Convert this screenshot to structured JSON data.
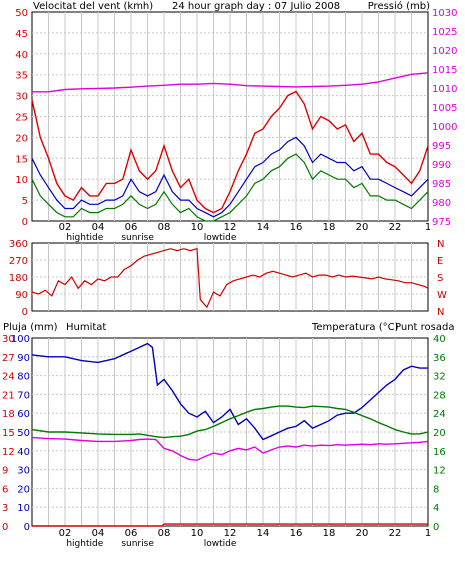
{
  "colors": {
    "wind": "#e00000",
    "wind_avg": "#0000c0",
    "wind_dir": "#d00000",
    "pressure": "#e000e0",
    "humidity": "#0000c0",
    "temperature": "#007a00",
    "dew_point": "#e000e0",
    "rain": "#d00000",
    "grid": "#c8c8c8",
    "frame": "#000000"
  },
  "chart_data": [
    {
      "type": "line",
      "name": "wind-pressure",
      "title": "24 hour graph day : 07 Julio 2008",
      "left_label": "Velocitat del vent (kmh)",
      "right_label": "Pressió (mb)",
      "x_ticks": [
        "02",
        "04",
        "06",
        "08",
        "10",
        "12",
        "14",
        "16",
        "18",
        "20",
        "22",
        "1"
      ],
      "x_markers": [
        "hightide",
        "sunrise",
        "lowtide"
      ],
      "x_range": [
        0,
        24
      ],
      "y_left_range": [
        0,
        50
      ],
      "y_left_ticks": [
        0,
        5,
        10,
        15,
        20,
        25,
        30,
        35,
        40,
        45,
        50
      ],
      "y_right_range": [
        975,
        1030
      ],
      "y_right_ticks": [
        975,
        980,
        985,
        990,
        995,
        1000,
        1005,
        1010,
        1015,
        1020,
        1025,
        1030
      ],
      "series": [
        {
          "key": "pressure",
          "axis": "right",
          "x": [
            0,
            1,
            2,
            3,
            4,
            5,
            6,
            7,
            8,
            9,
            10,
            11,
            12,
            13,
            14,
            15,
            16,
            17,
            18,
            19,
            20,
            21,
            22,
            23,
            24
          ],
          "values": [
            1009,
            1009,
            1009.6,
            1009.8,
            1009.9,
            1010,
            1010.2,
            1010.5,
            1010.7,
            1011,
            1011,
            1011.2,
            1011,
            1010.6,
            1010.5,
            1010.4,
            1010.3,
            1010.4,
            1010.5,
            1010.7,
            1011,
            1011.6,
            1012.6,
            1013.6,
            1014
          ]
        },
        {
          "key": "wind_gust",
          "axis": "left",
          "x": [
            0,
            0.5,
            1,
            1.5,
            2,
            2.5,
            3,
            3.5,
            4,
            4.5,
            5,
            5.5,
            6,
            6.5,
            7,
            7.5,
            8,
            8.5,
            9,
            9.5,
            10,
            10.5,
            11,
            11.5,
            12,
            12.5,
            13,
            13.5,
            14,
            14.5,
            15,
            15.5,
            16,
            16.5,
            17,
            17.5,
            18,
            18.5,
            19,
            19.5,
            20,
            20.5,
            21,
            21.5,
            22,
            22.5,
            23,
            23.5,
            24
          ],
          "values": [
            29,
            20,
            15,
            9,
            6,
            5,
            8,
            6,
            6,
            9,
            9,
            10,
            17,
            12,
            10,
            12,
            18,
            12,
            8,
            10,
            5,
            3,
            2,
            3,
            7,
            12,
            16,
            21,
            22,
            25,
            27,
            30,
            31,
            28,
            22,
            25,
            24,
            22,
            23,
            19,
            21,
            16,
            16,
            14,
            13,
            11,
            9,
            12,
            18
          ]
        },
        {
          "key": "wind_avg",
          "axis": "left",
          "x": [
            0,
            0.5,
            1,
            1.5,
            2,
            2.5,
            3,
            3.5,
            4,
            4.5,
            5,
            5.5,
            6,
            6.5,
            7,
            7.5,
            8,
            8.5,
            9,
            9.5,
            10,
            10.5,
            11,
            11.5,
            12,
            12.5,
            13,
            13.5,
            14,
            14.5,
            15,
            15.5,
            16,
            16.5,
            17,
            17.5,
            18,
            18.5,
            19,
            19.5,
            20,
            20.5,
            21,
            21.5,
            22,
            22.5,
            23,
            23.5,
            24
          ],
          "values": [
            15,
            11,
            8,
            5,
            3,
            3,
            5,
            4,
            4,
            5,
            5,
            6,
            10,
            7,
            6,
            7,
            11,
            7,
            5,
            5,
            3,
            2,
            1,
            2,
            4,
            7,
            10,
            13,
            14,
            16,
            17,
            19,
            20,
            18,
            14,
            16,
            15,
            14,
            14,
            12,
            13,
            10,
            10,
            9,
            8,
            7,
            6,
            8,
            10
          ]
        },
        {
          "key": "wind_min",
          "axis": "left",
          "x": [
            0,
            0.5,
            1,
            1.5,
            2,
            2.5,
            3,
            3.5,
            4,
            4.5,
            5,
            5.5,
            6,
            6.5,
            7,
            7.5,
            8,
            8.5,
            9,
            9.5,
            10,
            10.5,
            11,
            11.5,
            12,
            12.5,
            13,
            13.5,
            14,
            14.5,
            15,
            15.5,
            16,
            16.5,
            17,
            17.5,
            18,
            18.5,
            19,
            19.5,
            20,
            20.5,
            21,
            21.5,
            22,
            22.5,
            23,
            23.5,
            24
          ],
          "values": [
            10,
            6,
            4,
            2,
            1,
            1,
            3,
            2,
            2,
            3,
            3,
            4,
            6,
            4,
            3,
            4,
            7,
            4,
            2,
            3,
            1,
            0,
            0,
            1,
            2,
            4,
            6,
            9,
            10,
            12,
            13,
            15,
            16,
            14,
            10,
            12,
            11,
            10,
            10,
            8,
            9,
            6,
            6,
            5,
            5,
            4,
            3,
            5,
            7
          ]
        }
      ]
    },
    {
      "type": "line",
      "name": "wind-direction",
      "x_range": [
        0,
        24
      ],
      "y_range": [
        0,
        360
      ],
      "y_ticks": [
        0,
        90,
        180,
        270,
        360
      ],
      "right_ticks": [
        "N",
        "W",
        "S",
        "E",
        "N"
      ],
      "series": [
        {
          "key": "wind_dir",
          "x": [
            0,
            0.4,
            0.8,
            1.2,
            1.6,
            2,
            2.4,
            2.8,
            3.2,
            3.6,
            4,
            4.4,
            4.8,
            5.2,
            5.6,
            6,
            6.4,
            6.8,
            7.2,
            7.6,
            8,
            8.4,
            8.8,
            9.2,
            9.6,
            10,
            10.2,
            10.6,
            11,
            11.4,
            11.8,
            12.2,
            12.6,
            13,
            13.4,
            13.8,
            14.2,
            14.6,
            15,
            15.4,
            15.8,
            16.2,
            16.6,
            17,
            17.4,
            17.8,
            18.2,
            18.6,
            19,
            19.4,
            19.8,
            20.2,
            20.6,
            21,
            21.4,
            21.8,
            22.2,
            22.6,
            23,
            23.4,
            23.8,
            24
          ],
          "values": [
            100,
            90,
            110,
            80,
            160,
            140,
            180,
            120,
            160,
            140,
            170,
            160,
            180,
            180,
            220,
            240,
            270,
            290,
            300,
            310,
            320,
            330,
            320,
            330,
            320,
            330,
            60,
            20,
            100,
            80,
            140,
            160,
            170,
            180,
            190,
            180,
            200,
            210,
            200,
            190,
            180,
            190,
            200,
            180,
            190,
            190,
            180,
            190,
            180,
            185,
            180,
            175,
            170,
            180,
            170,
            165,
            160,
            150,
            150,
            140,
            130,
            120
          ]
        }
      ]
    },
    {
      "type": "line",
      "name": "humidity-temperature",
      "left_label": "Pluja (mm)",
      "humidity_label": "Humitat",
      "right_label": "Temperatura (°C)",
      "dew_label": "Punt rosada",
      "x_ticks": [
        "02",
        "04",
        "06",
        "08",
        "10",
        "12",
        "14",
        "16",
        "18",
        "20",
        "22",
        "1"
      ],
      "x_markers": [
        "hightide",
        "sunrise",
        "lowtide"
      ],
      "x_range": [
        0,
        24
      ],
      "hum_range": [
        0,
        100
      ],
      "hum_ticks": [
        0,
        10,
        20,
        30,
        40,
        50,
        60,
        70,
        80,
        90,
        100
      ],
      "rain_range": [
        0,
        30
      ],
      "rain_ticks": [
        0,
        3,
        6,
        9,
        12,
        15,
        18,
        21,
        24,
        27,
        30
      ],
      "temp_range": [
        0,
        40
      ],
      "temp_ticks": [
        0,
        4,
        8,
        12,
        16,
        20,
        24,
        28,
        32,
        36,
        40
      ],
      "series": [
        {
          "key": "humidity",
          "axis": "hum",
          "x": [
            0,
            1,
            2,
            3,
            4,
            5,
            6,
            6.5,
            7,
            7.3,
            7.6,
            8,
            8.5,
            9,
            9.5,
            10,
            10.5,
            11,
            11.5,
            12,
            12.5,
            13,
            13.5,
            14,
            14.5,
            15,
            15.5,
            16,
            16.5,
            17,
            17.5,
            18,
            18.5,
            19,
            19.5,
            20,
            20.5,
            21,
            21.5,
            22,
            22.5,
            23,
            23.5,
            24
          ],
          "values": [
            91,
            90,
            90,
            88,
            87,
            89,
            93,
            95,
            97,
            95,
            75,
            78,
            72,
            65,
            60,
            58,
            61,
            55,
            58,
            62,
            54,
            57,
            52,
            46,
            48,
            50,
            52,
            53,
            56,
            52,
            54,
            56,
            59,
            60,
            60,
            63,
            67,
            71,
            75,
            78,
            83,
            85,
            84,
            84
          ]
        },
        {
          "key": "temperature",
          "axis": "temp",
          "x": [
            0,
            1,
            2,
            3,
            4,
            5,
            6,
            6.5,
            7,
            7.5,
            8,
            8.5,
            9,
            9.5,
            10,
            10.5,
            11,
            11.5,
            12,
            12.5,
            13,
            13.5,
            14,
            14.5,
            15,
            15.5,
            16,
            16.5,
            17,
            17.5,
            18,
            18.5,
            19,
            19.5,
            20,
            20.5,
            21,
            21.5,
            22,
            22.5,
            23,
            23.5,
            24
          ],
          "values": [
            20.5,
            20,
            20,
            19.8,
            19.6,
            19.5,
            19.5,
            19.6,
            19.3,
            19,
            18.8,
            19,
            19.1,
            19.5,
            20.2,
            20.5,
            21.2,
            22,
            22.8,
            23.5,
            24.2,
            24.8,
            25,
            25.3,
            25.5,
            25.5,
            25.3,
            25.2,
            25.5,
            25.4,
            25.3,
            25,
            24.8,
            24.2,
            23.5,
            22.8,
            22,
            21.3,
            20.5,
            20,
            19.6,
            19.6,
            20
          ]
        },
        {
          "key": "dew_point",
          "axis": "temp",
          "x": [
            0,
            1,
            2,
            3,
            4,
            5,
            6,
            6.5,
            7,
            7.5,
            8,
            8.5,
            9,
            9.5,
            10,
            10.5,
            11,
            11.5,
            12,
            12.5,
            13,
            13.5,
            14,
            14.5,
            15,
            15.5,
            16,
            16.5,
            17,
            17.5,
            18,
            18.5,
            19,
            19.5,
            20,
            20.5,
            21,
            21.5,
            22,
            22.5,
            23,
            23.5,
            24
          ],
          "values": [
            18.8,
            18.6,
            18.5,
            18.2,
            18,
            18,
            18.2,
            18.4,
            18.5,
            18.4,
            16.5,
            16,
            15,
            14.2,
            14,
            14.8,
            15.5,
            15.2,
            16,
            16.5,
            16.2,
            16.8,
            15.5,
            16.2,
            16.8,
            17,
            16.8,
            17.2,
            17,
            17.2,
            17.1,
            17.3,
            17.2,
            17.3,
            17.4,
            17.3,
            17.5,
            17.4,
            17.5,
            17.6,
            17.7,
            17.8,
            18
          ]
        },
        {
          "key": "rain",
          "axis": "rain",
          "x": [
            0,
            7.9,
            8,
            24
          ],
          "values": [
            0,
            0,
            0.3,
            0.3
          ]
        }
      ]
    }
  ]
}
